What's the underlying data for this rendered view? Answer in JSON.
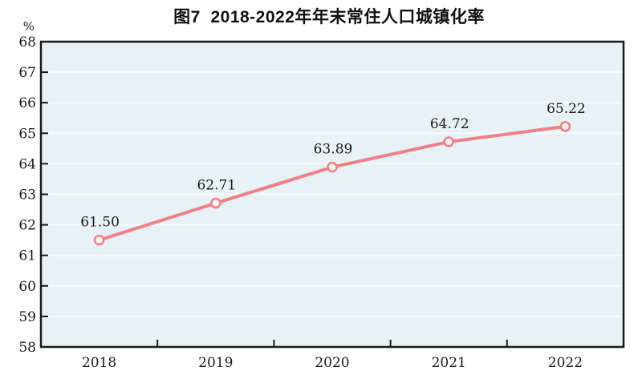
{
  "chart_data": {
    "type": "line",
    "title": "图7  2018-2022年年末常住人口城镇化率",
    "unit_label": "%",
    "categories": [
      "2018",
      "2019",
      "2020",
      "2021",
      "2022"
    ],
    "values": [
      61.5,
      62.71,
      63.89,
      64.72,
      65.22
    ],
    "value_labels": [
      "61.50",
      "62.71",
      "63.89",
      "64.72",
      "65.22"
    ],
    "yticks": [
      "58",
      "59",
      "60",
      "61",
      "62",
      "63",
      "64",
      "65",
      "66",
      "67",
      "68"
    ],
    "ylim": [
      58,
      68
    ],
    "grid": true,
    "legend": "none",
    "colors": {
      "line": "#f08084",
      "marker_fill": "#fdf1f1",
      "plot_bg": "#e8f2f6",
      "grid": "#f7fbfd",
      "axis": "#181818",
      "text": "#1a1a1a"
    }
  }
}
